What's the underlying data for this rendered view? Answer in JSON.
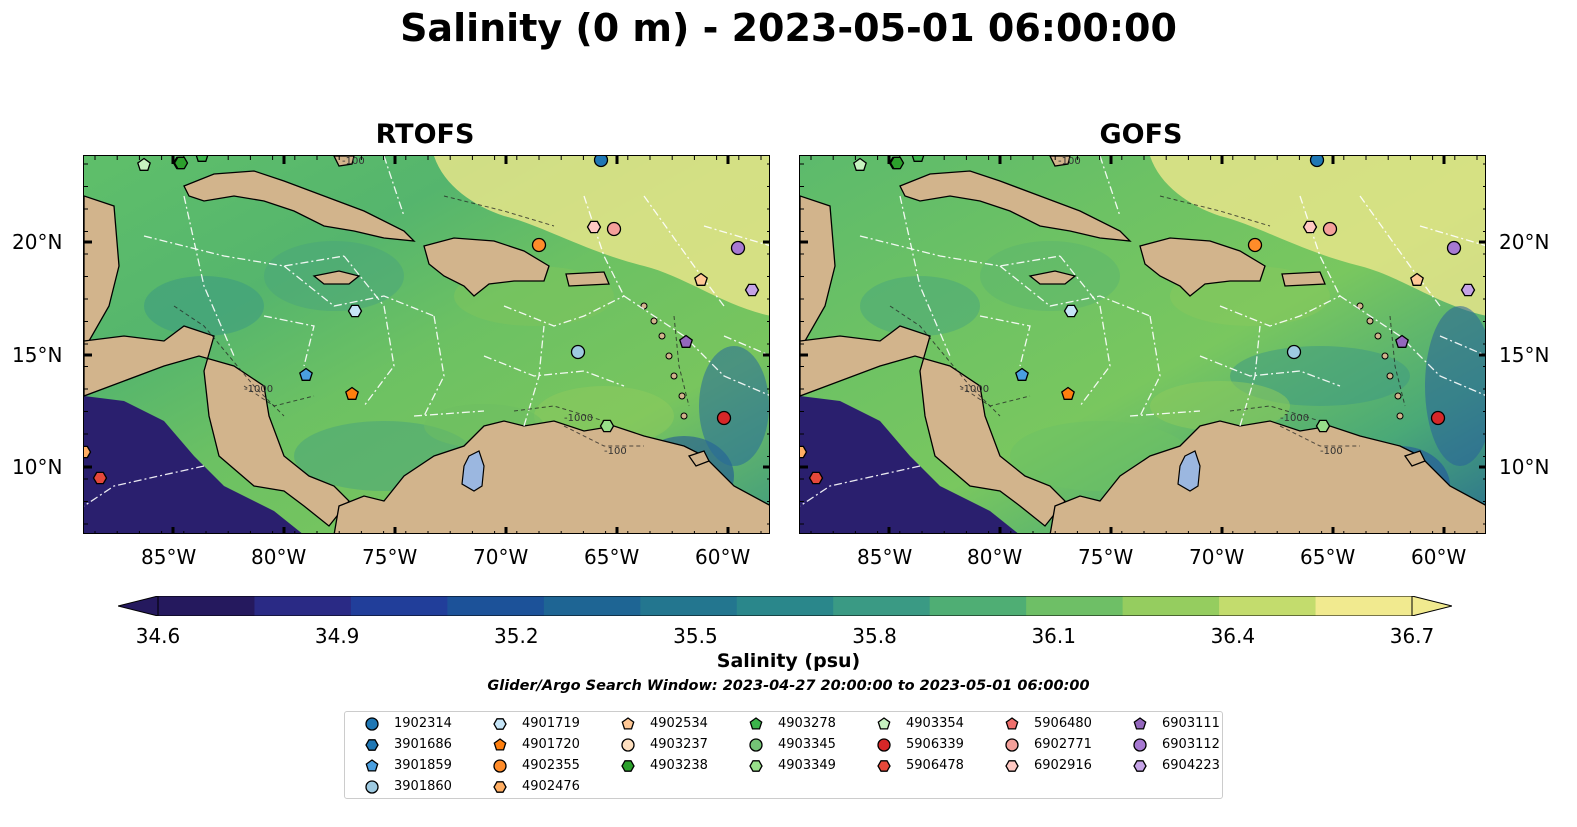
{
  "title": "Salinity (0 m) - 2023-05-01 06:00:00",
  "panels": [
    {
      "title": "RTOFS",
      "contour_labels": [
        "-100",
        "-1000",
        "-1000",
        "-100"
      ]
    },
    {
      "title": "GOFS",
      "contour_labels": [
        "-100",
        "-1000",
        "-1000",
        "-100"
      ]
    }
  ],
  "lat_labels": [
    "20°N",
    "15°N",
    "10°N"
  ],
  "lon_labels": [
    "85°W",
    "80°W",
    "75°W",
    "70°W",
    "65°W",
    "60°W"
  ],
  "colorbar": {
    "ticks": [
      "34.6",
      "34.9",
      "35.2",
      "35.5",
      "35.8",
      "36.1",
      "36.4",
      "36.7"
    ],
    "label": "Salinity (psu)",
    "min": 34.6,
    "max": 36.7,
    "colors": [
      "#25195e",
      "#2a2a85",
      "#213e9a",
      "#1c5299",
      "#1e6594",
      "#23768f",
      "#2a878b",
      "#3a9a84",
      "#4fae74",
      "#6ebf66",
      "#95cd5f",
      "#c3dc6d",
      "#f1ea8f"
    ],
    "extend": "both"
  },
  "search_window": "Glider/Argo Search Window: 2023-04-27 20:00:00 to 2023-05-01 06:00:00",
  "land_color": "#d2b48c",
  "legend": [
    {
      "id": "1902314",
      "color": "#1f77b4",
      "marker": "circle"
    },
    {
      "id": "3901686",
      "color": "#1f77b4",
      "marker": "hexagon"
    },
    {
      "id": "3901859",
      "color": "#4a9fe0",
      "marker": "pentagon"
    },
    {
      "id": "3901860",
      "color": "#9ecae1",
      "marker": "circle"
    },
    {
      "id": "4901719",
      "color": "#c6e5f7",
      "marker": "hexagon"
    },
    {
      "id": "4901720",
      "color": "#ff7f0e",
      "marker": "pentagon"
    },
    {
      "id": "4902355",
      "color": "#ff8c2a",
      "marker": "circle"
    },
    {
      "id": "4902476",
      "color": "#ffae63",
      "marker": "hexagon"
    },
    {
      "id": "4902534",
      "color": "#ffc896",
      "marker": "pentagon"
    },
    {
      "id": "4903237",
      "color": "#ffe0c0",
      "marker": "circle"
    },
    {
      "id": "4903238",
      "color": "#2ca02c",
      "marker": "hexagon"
    },
    {
      "id": "4903278",
      "color": "#3cb44b",
      "marker": "pentagon"
    },
    {
      "id": "4903345",
      "color": "#74c476",
      "marker": "circle"
    },
    {
      "id": "4903349",
      "color": "#98df8a",
      "marker": "hexagon"
    },
    {
      "id": "4903354",
      "color": "#c7f2c0",
      "marker": "pentagon"
    },
    {
      "id": "5906339",
      "color": "#d62728",
      "marker": "circle"
    },
    {
      "id": "5906478",
      "color": "#e6483a",
      "marker": "hexagon"
    },
    {
      "id": "5906480",
      "color": "#ef6f6c",
      "marker": "pentagon"
    },
    {
      "id": "6902771",
      "color": "#f4a09a",
      "marker": "circle"
    },
    {
      "id": "6902916",
      "color": "#ffc9c3",
      "marker": "hexagon"
    },
    {
      "id": "6903111",
      "color": "#9467bd",
      "marker": "pentagon"
    },
    {
      "id": "6903112",
      "color": "#a779d2",
      "marker": "circle"
    },
    {
      "id": "6904223",
      "color": "#c5a3e6",
      "marker": "hexagon"
    }
  ]
}
